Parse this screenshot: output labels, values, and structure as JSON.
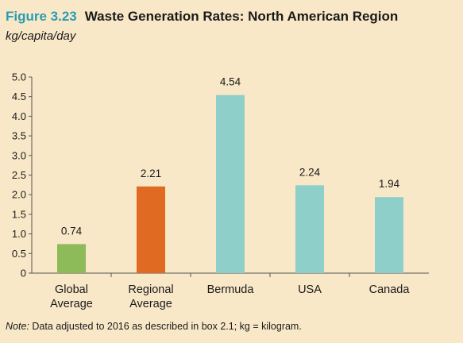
{
  "figure": {
    "number": "Figure 3.23",
    "title": "Waste Generation Rates: North American Region",
    "subtitle": "kg/capita/day"
  },
  "note": {
    "label": "Note:",
    "text": "Data adjusted to 2016 as described in box 2.1; kg = kilogram."
  },
  "chart_data": {
    "type": "bar",
    "categories": [
      "Global Average",
      "Regional Average",
      "Bermuda",
      "USA",
      "Canada"
    ],
    "category_lines": [
      [
        "Global",
        "Average"
      ],
      [
        "Regional",
        "Average"
      ],
      [
        "Bermuda"
      ],
      [
        "USA"
      ],
      [
        "Canada"
      ]
    ],
    "values": [
      0.74,
      2.21,
      4.54,
      2.24,
      1.94
    ],
    "value_labels": [
      "0.74",
      "2.21",
      "4.54",
      "2.24",
      "1.94"
    ],
    "colors": [
      "#8dbb5a",
      "#e06a22",
      "#8ecfca",
      "#8ecfca",
      "#8ecfca"
    ],
    "ylim": [
      0,
      5
    ],
    "yticks": [
      "0",
      "0.5",
      "1.0",
      "1.5",
      "2.0",
      "2.5",
      "3.0",
      "3.5",
      "4.0",
      "4.5",
      "5.0"
    ],
    "grid": false,
    "axis_color": "#555555"
  }
}
